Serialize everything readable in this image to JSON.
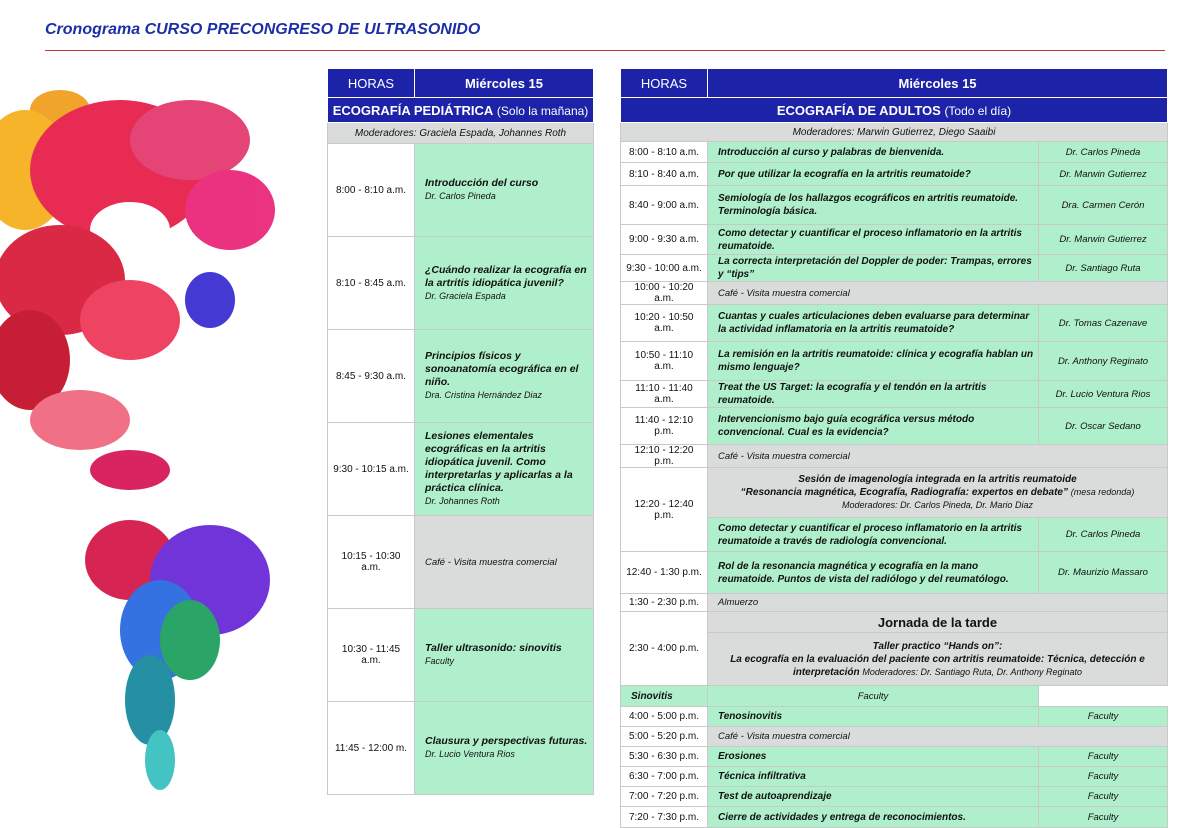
{
  "header": {
    "title": "Cronograma CURSO PRECONGRESO DE ULTRASONIDO"
  },
  "pediatric": {
    "hours_label": "HORAS",
    "day": "Miércoles 15",
    "section": "ECOGRAFÍA PEDIÁTRICA",
    "section_note": "(Solo la mañana)",
    "moderators": "Moderadores: Graciela Espada, Johannes Roth",
    "rows": [
      {
        "time": "8:00 - 8:10 a.m.",
        "title": "Introducción del curso",
        "speaker": "Dr. Carlos Pineda"
      },
      {
        "time": "8:10 - 8:45 a.m.",
        "title": "¿Cuándo realizar la ecografía en la artritis idiopática juvenil?",
        "speaker": "Dr. Graciela Espada"
      },
      {
        "time": "8:45 - 9:30 a.m.",
        "title": "Principios físicos y sonoanatomía ecográfica en el niño.",
        "speaker": "Dra. Cristina Hernández Diaz"
      },
      {
        "time": "9:30 - 10:15 a.m.",
        "title": "Lesiones elementales ecográficas en la artritis idiopática juvenil. Como interpretarlas y aplicarlas a la práctica clínica.",
        "speaker": "Dr. Johannes Roth"
      },
      {
        "time": "10:15 - 10:30 a.m.",
        "title": "Café - Visita muestra comercial"
      },
      {
        "time": "10:30 - 11:45 a.m.",
        "title": "Taller ultrasonido: sinovitis",
        "speaker": "Faculty"
      },
      {
        "time": "11:45 - 12:00 m.",
        "title": "Clausura y perspectivas futuras.",
        "speaker": "Dr. Lucio Ventura Rios"
      }
    ]
  },
  "adults": {
    "hours_label": "HORAS",
    "day": "Miércoles 15",
    "section": "ECOGRAFÍA DE ADULTOS",
    "section_note": "(Todo el día)",
    "moderators": "Moderadores: Marwin Gutierrez, Diego Saaibi",
    "rows": [
      {
        "time": "8:00 - 8:10 a.m.",
        "title": "Introducción al curso y palabras de bienvenida.",
        "speaker": "Dr. Carlos Pineda"
      },
      {
        "time": "8:10 - 8:40 a.m.",
        "title": "Por que utilizar la ecografía en la artritis reumatoide?",
        "speaker": "Dr. Marwin Gutierrez"
      },
      {
        "time": "8:40 - 9:00 a.m.",
        "title": "Semiología de los hallazgos ecográficos en artritis reumatoide. Terminología básica.",
        "speaker": "Dra. Carmen Cerón"
      },
      {
        "time": "9:00 - 9:30 a.m.",
        "title": "Como detectar y cuantificar el proceso inflamatorio en la artritis reumatoide.",
        "speaker": "Dr. Marwin Gutierrez"
      },
      {
        "time": "9:30 - 10:00 a.m.",
        "title": "La correcta interpretación del Doppler de poder: Trampas, errores y “tips”",
        "speaker": "Dr. Santiago Ruta"
      },
      {
        "time": "10:00 - 10:20 a.m.",
        "title": "Café - Visita muestra comercial"
      },
      {
        "time": "10:20 - 10:50 a.m.",
        "title": "Cuantas y cuales articulaciones deben evaluarse para determinar la actividad inflamatoria en la artritis reumatoide?",
        "speaker": "Dr. Tomas Cazenave"
      },
      {
        "time": "10:50 - 11:10 a.m.",
        "title": "La remisión en la artritis reumatoide: clínica y ecografía hablan un mismo lenguaje?",
        "speaker": "Dr. Anthony Reginato"
      },
      {
        "time": "11:10 - 11:40 a.m.",
        "title": "Treat the US Target: la ecografía y el tendón en la artritis reumatoide.",
        "speaker": "Dr. Lucio Ventura Rios"
      },
      {
        "time": "11:40 - 12:10 p.m.",
        "title": "Intervencionismo bajo guía ecográfica versus método convencional. Cual es la evidencia?",
        "speaker": "Dr. Oscar Sedano"
      },
      {
        "time": "12:10 - 12:20 p.m.",
        "title": "Café - Visita muestra comercial"
      }
    ],
    "session": {
      "time": "12:20 - 12:40 p.m.",
      "heading": "Sesión de imagenología integrada en la artritis reumatoide",
      "subheading": "“Resonancia magnética, Ecografía, Radiografía: expertos en debate”",
      "note": "(mesa redonda)",
      "moderators": "Moderadores: Dr. Carlos Pineda, Dr. Mario Diaz",
      "talk": {
        "title": "Como detectar y cuantificar el proceso inflamatorio en la artritis reumatoide a través de radiología convencional.",
        "speaker": "Dr. Carlos Pineda"
      }
    },
    "late_rows": [
      {
        "time": "12:40 - 1:30 p.m.",
        "title": "Rol de la resonancia magnética y ecografía en la mano reumatoide. Puntos de vista del radiólogo y del reumatólogo.",
        "speaker": "Dr. Maurizio Massaro"
      },
      {
        "time": "1:30 - 2:30 p.m.",
        "title": "Almuerzo"
      }
    ],
    "afternoon": {
      "time": "2:30 - 4:00 p.m.",
      "heading": "Jornada de la tarde",
      "workshop_title": "Taller practico “Hands on”:",
      "workshop_topic": "La ecografía en la evaluación del paciente con artritis reumatoide: Técnica, detección e interpretación",
      "workshop_moderators": "Moderadores: Dr. Santiago Ruta, Dr. Anthony Reginato",
      "rows": [
        {
          "title": "Sinovitis",
          "speaker": "Faculty"
        },
        {
          "time": "4:00 - 5:00 p.m.",
          "title": "Tenosinovitis",
          "speaker": "Faculty"
        },
        {
          "time": "5:00 - 5:20 p.m.",
          "title": "Café - Visita muestra comercial"
        },
        {
          "time": "5:30 - 6:30 p.m.",
          "title": "Erosiones",
          "speaker": "Faculty"
        },
        {
          "time": "6:30 - 7:00 p.m.",
          "title": "Técnica infiltrativa",
          "speaker": "Faculty"
        },
        {
          "time": "7:00 - 7:20 p.m.",
          "title": "Test de autoaprendizaje",
          "speaker": "Faculty"
        },
        {
          "time": "7:20 - 7:30 p.m.",
          "title": "Cierre de actividades y entrega de reconocimientos.",
          "speaker": "Faculty"
        }
      ]
    }
  }
}
